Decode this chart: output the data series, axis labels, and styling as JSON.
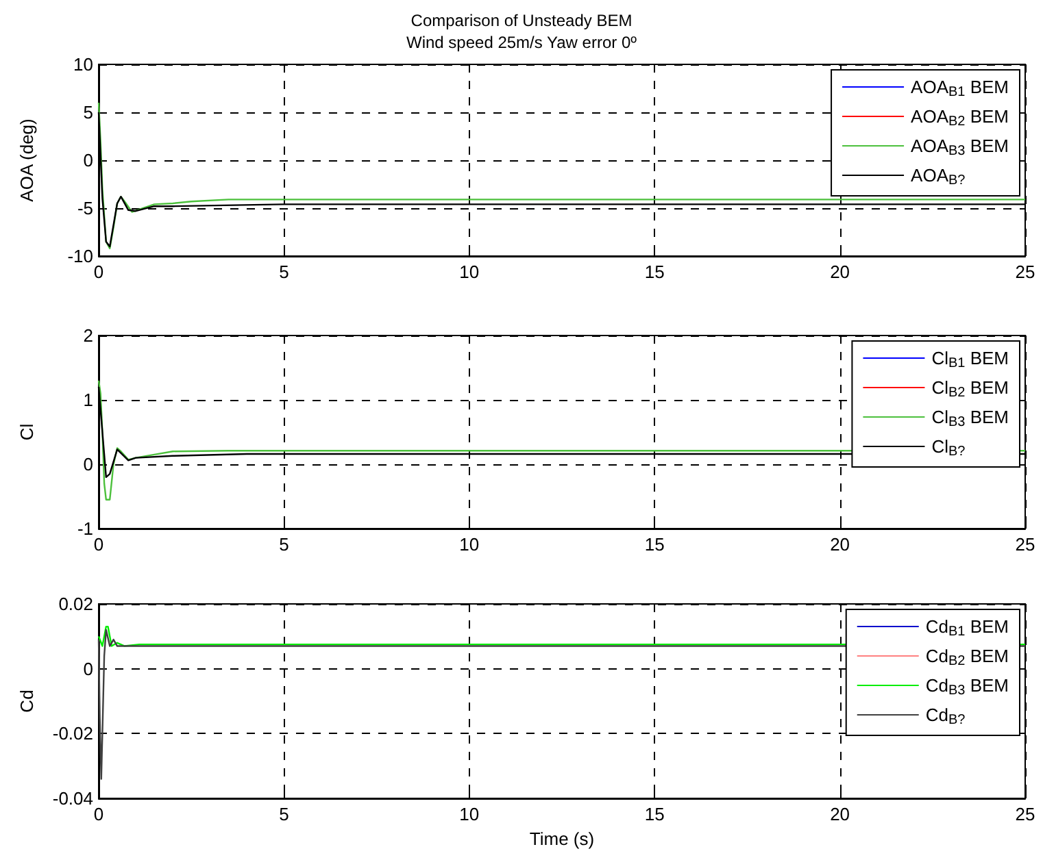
{
  "chart_data": [
    {
      "type": "line",
      "title": "Comparison of Unsteady BEM",
      "subtitle": "Wind speed 25m/s Yaw error 0º",
      "ylabel": "AOA (deg)",
      "xlim": [
        0,
        25
      ],
      "xticks": [
        0,
        5,
        10,
        15,
        20,
        25
      ],
      "ylim": [
        -10,
        10
      ],
      "yticks": [
        -10,
        -5,
        0,
        5,
        10
      ],
      "grid": true,
      "legend": "top right",
      "marker": "none",
      "line_style": "solid",
      "series": [
        {
          "name": "AOA$_{B1}$ BEM",
          "color": "#0000ff"
        },
        {
          "name": "AOA$_{B2}$ BEM",
          "color": "#ff0000"
        },
        {
          "name": "AOA$_{B3}$ BEM",
          "color": "#4cc03c",
          "x": [
            0,
            0.05,
            0.1,
            0.2,
            0.3,
            0.4,
            0.5,
            0.6,
            0.7,
            0.9,
            1.2,
            1.5,
            2,
            2.5,
            3.5,
            25
          ],
          "values": [
            6,
            2,
            -3,
            -8.5,
            -9.2,
            -7,
            -4.5,
            -3.8,
            -4.3,
            -5.4,
            -5,
            -4.6,
            -4.5,
            -4.3,
            -4.1,
            -4.1
          ]
        },
        {
          "name": "AOA$_{B?}$",
          "color": "#000000",
          "x": [
            0,
            0.1,
            0.2,
            0.3,
            0.5,
            0.6,
            0.8,
            1,
            1.5,
            2,
            5,
            25
          ],
          "values": [
            5,
            -4,
            -8.5,
            -9,
            -4.5,
            -3.8,
            -5.2,
            -5.3,
            -4.8,
            -4.8,
            -4.6,
            -4.6
          ]
        }
      ]
    },
    {
      "type": "line",
      "ylabel": "Cl",
      "xlim": [
        0,
        25
      ],
      "xticks": [
        0,
        5,
        10,
        15,
        20,
        25
      ],
      "ylim": [
        -1,
        2
      ],
      "yticks": [
        -1,
        0,
        1,
        2
      ],
      "grid": true,
      "legend": "top right",
      "marker": "none",
      "line_style": "solid",
      "series": [
        {
          "name": "Cl$_{B1}$ BEM",
          "color": "#0000ff"
        },
        {
          "name": "Cl$_{B2}$ BEM",
          "color": "#ff0000"
        },
        {
          "name": "Cl$_{B3}$ BEM",
          "color": "#4cc03c",
          "x": [
            0,
            0.05,
            0.1,
            0.15,
            0.2,
            0.3,
            0.4,
            0.5,
            0.6,
            0.8,
            1,
            1.5,
            2,
            3.5,
            25
          ],
          "values": [
            1.3,
            1.1,
            0.5,
            -0.3,
            -0.55,
            -0.55,
            0,
            0.25,
            0.2,
            0.07,
            0.1,
            0.15,
            0.2,
            0.21,
            0.21
          ]
        },
        {
          "name": "Cl$_{B?}$",
          "color": "#000000",
          "x": [
            0,
            0.1,
            0.2,
            0.3,
            0.5,
            0.8,
            1,
            2,
            4,
            25
          ],
          "values": [
            1.2,
            0.5,
            -0.2,
            -0.15,
            0.23,
            0.06,
            0.1,
            0.13,
            0.16,
            0.16
          ]
        }
      ]
    },
    {
      "type": "line",
      "ylabel": "Cd",
      "xlabel": "Time (s)",
      "xlim": [
        0,
        25
      ],
      "xticks": [
        0,
        5,
        10,
        15,
        20,
        25
      ],
      "ylim": [
        -0.04,
        0.02
      ],
      "yticks": [
        -0.04,
        -0.02,
        0,
        0.02
      ],
      "grid": true,
      "legend": "top right",
      "marker": "none",
      "line_style": "solid",
      "series": [
        {
          "name": "Cd$_{B1}$ BEM",
          "color": "#0000cc"
        },
        {
          "name": "Cd$_{B2}$ BEM",
          "color": "#ff8080"
        },
        {
          "name": "Cd$_{B3}$ BEM",
          "color": "#00ee00",
          "x": [
            0,
            0.1,
            0.2,
            0.25,
            0.35,
            0.5,
            0.7,
            1.1,
            25
          ],
          "values": [
            0.01,
            0.007,
            0.013,
            0.013,
            0.007,
            0.008,
            0.007,
            0.0075,
            0.0075
          ]
        },
        {
          "name": "Cd$_{B?}$",
          "color": "#404040",
          "x": [
            0,
            0.03,
            0.07,
            0.1,
            0.15,
            0.2,
            0.3,
            0.4,
            0.5,
            0.7,
            25
          ],
          "values": [
            0.009,
            -0.015,
            -0.034,
            -0.02,
            0.004,
            0.012,
            0.007,
            0.009,
            0.007,
            0.007,
            0.007
          ]
        }
      ]
    }
  ]
}
